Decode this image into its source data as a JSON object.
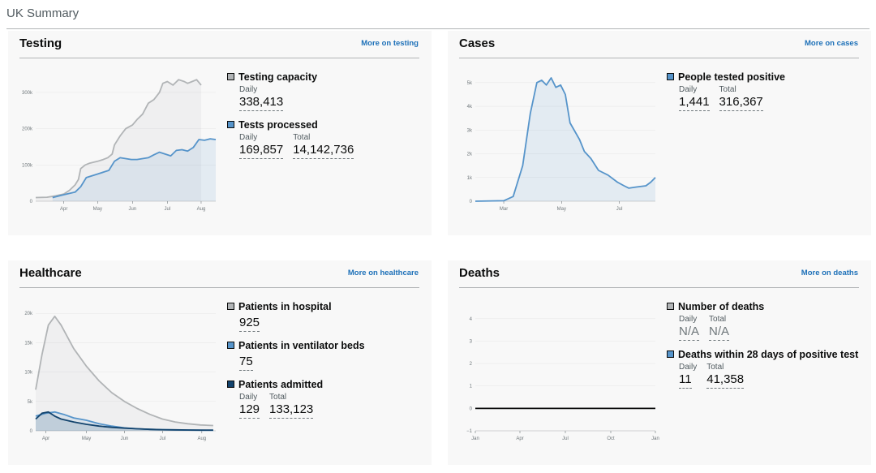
{
  "page": {
    "title": "UK Summary"
  },
  "cards": {
    "testing": {
      "title": "Testing",
      "link": "More on testing",
      "metrics": [
        {
          "label": "Testing capacity",
          "color": "#b1b4b6",
          "figures": [
            {
              "caption": "Daily",
              "value": "338,413"
            }
          ]
        },
        {
          "label": "Tests processed",
          "color": "#5694ca",
          "figures": [
            {
              "caption": "Daily",
              "value": "169,857"
            },
            {
              "caption": "Total",
              "value": "14,142,736"
            }
          ]
        }
      ]
    },
    "cases": {
      "title": "Cases",
      "link": "More on cases",
      "metrics": [
        {
          "label": "People tested positive",
          "color": "#5694ca",
          "figures": [
            {
              "caption": "Daily",
              "value": "1,441"
            },
            {
              "caption": "Total",
              "value": "316,367"
            }
          ]
        }
      ]
    },
    "healthcare": {
      "title": "Healthcare",
      "link": "More on healthcare",
      "metrics": [
        {
          "label": "Patients in hospital",
          "color": "#b1b4b6",
          "figures": [
            {
              "caption": "",
              "value": "925"
            }
          ]
        },
        {
          "label": "Patients in ventilator beds",
          "color": "#5694ca",
          "figures": [
            {
              "caption": "",
              "value": "75"
            }
          ]
        },
        {
          "label": "Patients admitted",
          "color": "#12436d",
          "figures": [
            {
              "caption": "Daily",
              "value": "129"
            },
            {
              "caption": "Total",
              "value": "133,123"
            }
          ]
        }
      ]
    },
    "deaths": {
      "title": "Deaths",
      "link": "More on deaths",
      "metrics": [
        {
          "label": "Number of deaths",
          "color": "#b1b4b6",
          "figures": [
            {
              "caption": "Daily",
              "value": "N/A",
              "na": true
            },
            {
              "caption": "Total",
              "value": "N/A",
              "na": true
            }
          ]
        },
        {
          "label": "Deaths within 28 days of positive test",
          "color": "#5694ca",
          "figures": [
            {
              "caption": "Daily",
              "value": "11"
            },
            {
              "caption": "Total",
              "value": "41,358"
            }
          ]
        }
      ]
    }
  },
  "chart_data": [
    {
      "id": "testing",
      "type": "area",
      "x_ticks": [
        "Apr",
        "May",
        "Jun",
        "Jul",
        "Aug"
      ],
      "x_tick_pos": [
        25,
        55,
        86,
        117,
        147
      ],
      "x_range": [
        0,
        160
      ],
      "y_ticks": [
        "0",
        "100k",
        "200k",
        "300k"
      ],
      "y_tick_vals": [
        0,
        100000,
        200000,
        300000
      ],
      "ylim": [
        0,
        340000
      ],
      "series": [
        {
          "color": "#b1b4b6",
          "points": [
            [
              0,
              10000
            ],
            [
              10,
              11000
            ],
            [
              18,
              15000
            ],
            [
              25,
              20000
            ],
            [
              30,
              30000
            ],
            [
              35,
              45000
            ],
            [
              38,
              60000
            ],
            [
              40,
              90000
            ],
            [
              44,
              100000
            ],
            [
              48,
              105000
            ],
            [
              55,
              110000
            ],
            [
              60,
              115000
            ],
            [
              64,
              120000
            ],
            [
              68,
              130000
            ],
            [
              70,
              155000
            ],
            [
              75,
              180000
            ],
            [
              80,
              200000
            ],
            [
              86,
              210000
            ],
            [
              90,
              225000
            ],
            [
              95,
              240000
            ],
            [
              100,
              270000
            ],
            [
              105,
              280000
            ],
            [
              110,
              300000
            ],
            [
              113,
              325000
            ],
            [
              117,
              330000
            ],
            [
              122,
              320000
            ],
            [
              127,
              335000
            ],
            [
              132,
              330000
            ],
            [
              135,
              325000
            ],
            [
              139,
              330000
            ],
            [
              143,
              335000
            ],
            [
              147,
              320000
            ]
          ]
        },
        {
          "color": "#5694ca",
          "points": [
            [
              15,
              10000
            ],
            [
              25,
              18000
            ],
            [
              35,
              25000
            ],
            [
              40,
              40000
            ],
            [
              45,
              65000
            ],
            [
              55,
              75000
            ],
            [
              65,
              85000
            ],
            [
              70,
              110000
            ],
            [
              75,
              120000
            ],
            [
              85,
              115000
            ],
            [
              90,
              115000
            ],
            [
              100,
              120000
            ],
            [
              105,
              128000
            ],
            [
              110,
              135000
            ],
            [
              115,
              130000
            ],
            [
              120,
              125000
            ],
            [
              125,
              140000
            ],
            [
              130,
              142000
            ],
            [
              135,
              138000
            ],
            [
              140,
              148000
            ],
            [
              145,
              170000
            ],
            [
              150,
              168000
            ],
            [
              155,
              172000
            ],
            [
              160,
              170000
            ]
          ]
        }
      ]
    },
    {
      "id": "cases",
      "type": "area",
      "x_ticks": [
        "Mar",
        "May",
        "Jul"
      ],
      "x_tick_pos": [
        30,
        91,
        152
      ],
      "x_range": [
        0,
        190
      ],
      "y_ticks": [
        "0",
        "1k",
        "2k",
        "3k",
        "4k",
        "5k"
      ],
      "y_tick_vals": [
        0,
        1000,
        2000,
        3000,
        4000,
        5000
      ],
      "ylim": [
        0,
        5200
      ],
      "series": [
        {
          "color": "#5694ca",
          "points": [
            [
              0,
              0
            ],
            [
              30,
              20
            ],
            [
              40,
              200
            ],
            [
              50,
              1500
            ],
            [
              58,
              3700
            ],
            [
              65,
              5000
            ],
            [
              70,
              5100
            ],
            [
              75,
              4900
            ],
            [
              80,
              5200
            ],
            [
              85,
              4800
            ],
            [
              90,
              4900
            ],
            [
              95,
              4500
            ],
            [
              100,
              3300
            ],
            [
              110,
              2600
            ],
            [
              115,
              2100
            ],
            [
              122,
              1800
            ],
            [
              130,
              1300
            ],
            [
              140,
              1100
            ],
            [
              150,
              800
            ],
            [
              157,
              650
            ],
            [
              162,
              550
            ],
            [
              170,
              600
            ],
            [
              180,
              650
            ],
            [
              185,
              800
            ],
            [
              190,
              1000
            ]
          ]
        }
      ]
    },
    {
      "id": "healthcare",
      "type": "area",
      "x_ticks": [
        "Apr",
        "May",
        "Jun",
        "Jul",
        "Aug"
      ],
      "x_tick_pos": [
        8,
        40,
        70,
        100,
        131
      ],
      "x_range": [
        0,
        142
      ],
      "y_ticks": [
        "0",
        "5k",
        "10k",
        "15k",
        "20k"
      ],
      "y_tick_vals": [
        0,
        5000,
        10000,
        15000,
        20000
      ],
      "ylim": [
        0,
        21000
      ],
      "series": [
        {
          "color": "#b1b4b6",
          "points": [
            [
              0,
              7000
            ],
            [
              5,
              13000
            ],
            [
              10,
              18000
            ],
            [
              15,
              19500
            ],
            [
              20,
              18000
            ],
            [
              30,
              14000
            ],
            [
              40,
              11000
            ],
            [
              50,
              8500
            ],
            [
              60,
              6500
            ],
            [
              70,
              5000
            ],
            [
              80,
              3800
            ],
            [
              90,
              2800
            ],
            [
              100,
              2000
            ],
            [
              110,
              1500
            ],
            [
              120,
              1200
            ],
            [
              130,
              1000
            ],
            [
              140,
              900
            ]
          ]
        },
        {
          "color": "#5694ca",
          "points": [
            [
              0,
              2500
            ],
            [
              8,
              3000
            ],
            [
              15,
              3200
            ],
            [
              22,
              2800
            ],
            [
              30,
              2200
            ],
            [
              40,
              1800
            ],
            [
              50,
              1200
            ],
            [
              60,
              800
            ],
            [
              70,
              500
            ],
            [
              80,
              350
            ],
            [
              90,
              250
            ],
            [
              100,
              200
            ],
            [
              110,
              150
            ],
            [
              120,
              120
            ],
            [
              130,
              100
            ],
            [
              140,
              80
            ]
          ]
        },
        {
          "color": "#12436d",
          "points": [
            [
              0,
              2000
            ],
            [
              5,
              3000
            ],
            [
              10,
              3200
            ],
            [
              15,
              2500
            ],
            [
              20,
              2000
            ],
            [
              30,
              1500
            ],
            [
              40,
              1100
            ],
            [
              50,
              800
            ],
            [
              60,
              600
            ],
            [
              70,
              450
            ],
            [
              80,
              350
            ],
            [
              90,
              250
            ],
            [
              100,
              200
            ],
            [
              110,
              160
            ],
            [
              120,
              140
            ],
            [
              130,
              130
            ],
            [
              140,
              130
            ]
          ]
        }
      ]
    },
    {
      "id": "deaths",
      "type": "line",
      "x_ticks": [
        "Jan",
        "Apr",
        "Jul",
        "Oct",
        "Jan"
      ],
      "x_tick_pos": [
        0,
        55,
        111,
        167,
        222
      ],
      "x_range": [
        0,
        222
      ],
      "y_ticks": [
        "−1",
        "0",
        "1",
        "2",
        "3",
        "4"
      ],
      "y_tick_vals": [
        -1,
        0,
        1,
        2,
        3,
        4
      ],
      "ylim": [
        -1,
        4.5
      ],
      "series": [
        {
          "color": "#0b0c0c",
          "points": [
            [
              0,
              0
            ],
            [
              222,
              0
            ]
          ]
        }
      ]
    }
  ]
}
